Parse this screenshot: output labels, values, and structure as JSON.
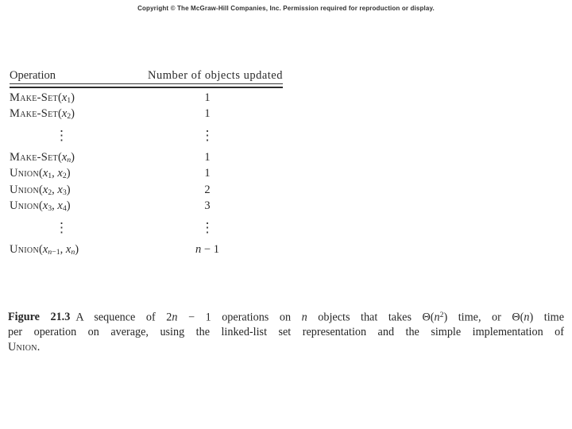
{
  "page": {
    "copyright": "Copyright © The McGraw-Hill Companies, Inc. Permission required for reproduction or display.",
    "background_color": "#ffffff",
    "text_color": "#2a2a2a"
  },
  "table": {
    "headers": [
      "Operation",
      "Number of objects updated"
    ],
    "rows": [
      {
        "type": "data",
        "op": [
          {
            "t": "Make-Set",
            "s": "sc"
          },
          {
            "t": "(",
            "s": "n"
          },
          {
            "t": "x",
            "s": "i"
          },
          {
            "t": "1",
            "s": "sub"
          },
          {
            "t": ")",
            "s": "n"
          }
        ],
        "value": [
          {
            "t": "1",
            "s": "n"
          }
        ]
      },
      {
        "type": "data",
        "op": [
          {
            "t": "Make-Set",
            "s": "sc"
          },
          {
            "t": "(",
            "s": "n"
          },
          {
            "t": "x",
            "s": "i"
          },
          {
            "t": "2",
            "s": "sub"
          },
          {
            "t": ")",
            "s": "n"
          }
        ],
        "value": [
          {
            "t": "1",
            "s": "n"
          }
        ]
      },
      {
        "type": "dots",
        "glyph": "⋮"
      },
      {
        "type": "data",
        "op": [
          {
            "t": "Make-Set",
            "s": "sc"
          },
          {
            "t": "(",
            "s": "n"
          },
          {
            "t": "x",
            "s": "i"
          },
          {
            "t": "n",
            "s": "subi"
          },
          {
            "t": ")",
            "s": "n"
          }
        ],
        "value": [
          {
            "t": "1",
            "s": "n"
          }
        ]
      },
      {
        "type": "data",
        "op": [
          {
            "t": "Union",
            "s": "sc"
          },
          {
            "t": "(",
            "s": "n"
          },
          {
            "t": "x",
            "s": "i"
          },
          {
            "t": "1",
            "s": "sub"
          },
          {
            "t": ", ",
            "s": "n"
          },
          {
            "t": "x",
            "s": "i"
          },
          {
            "t": "2",
            "s": "sub"
          },
          {
            "t": ")",
            "s": "n"
          }
        ],
        "value": [
          {
            "t": "1",
            "s": "n"
          }
        ]
      },
      {
        "type": "data",
        "op": [
          {
            "t": "Union",
            "s": "sc"
          },
          {
            "t": "(",
            "s": "n"
          },
          {
            "t": "x",
            "s": "i"
          },
          {
            "t": "2",
            "s": "sub"
          },
          {
            "t": ", ",
            "s": "n"
          },
          {
            "t": "x",
            "s": "i"
          },
          {
            "t": "3",
            "s": "sub"
          },
          {
            "t": ")",
            "s": "n"
          }
        ],
        "value": [
          {
            "t": "2",
            "s": "n"
          }
        ]
      },
      {
        "type": "data",
        "op": [
          {
            "t": "Union",
            "s": "sc"
          },
          {
            "t": "(",
            "s": "n"
          },
          {
            "t": "x",
            "s": "i"
          },
          {
            "t": "3",
            "s": "sub"
          },
          {
            "t": ", ",
            "s": "n"
          },
          {
            "t": "x",
            "s": "i"
          },
          {
            "t": "4",
            "s": "sub"
          },
          {
            "t": ")",
            "s": "n"
          }
        ],
        "value": [
          {
            "t": "3",
            "s": "n"
          }
        ]
      },
      {
        "type": "dots",
        "glyph": "⋮"
      },
      {
        "type": "data",
        "op": [
          {
            "t": "Union",
            "s": "sc"
          },
          {
            "t": "(",
            "s": "n"
          },
          {
            "t": "x",
            "s": "i"
          },
          {
            "t": "n",
            "s": "subi"
          },
          {
            "t": "−1",
            "s": "sub"
          },
          {
            "t": ", ",
            "s": "n"
          },
          {
            "t": "x",
            "s": "i"
          },
          {
            "t": "n",
            "s": "subi"
          },
          {
            "t": ")",
            "s": "n"
          }
        ],
        "value": [
          {
            "t": "n",
            "s": "i"
          },
          {
            "t": " − 1",
            "s": "n"
          }
        ]
      }
    ]
  },
  "caption": {
    "lines": [
      [
        {
          "t": "Figure 21.3",
          "s": "b"
        },
        {
          "t": "A sequence of 2",
          "s": "n"
        },
        {
          "t": "n",
          "s": "i"
        },
        {
          "t": " − 1 operations on ",
          "s": "n"
        },
        {
          "t": "n",
          "s": "i"
        },
        {
          "t": " objects that takes Θ(",
          "s": "n"
        },
        {
          "t": "n",
          "s": "i"
        },
        {
          "t": "2",
          "s": "sup"
        },
        {
          "t": ") time, or Θ(",
          "s": "n"
        },
        {
          "t": "n",
          "s": "i"
        },
        {
          "t": ") time",
          "s": "n"
        }
      ],
      [
        {
          "t": "per operation on average, using the linked-list set representation and the simple implementation of",
          "s": "n"
        }
      ],
      [
        {
          "t": "Union",
          "s": "sc"
        },
        {
          "t": ".",
          "s": "n"
        }
      ]
    ]
  }
}
